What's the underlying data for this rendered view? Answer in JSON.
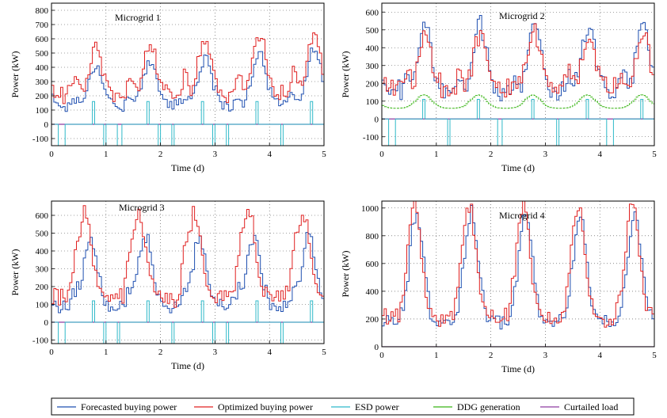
{
  "chart_data": {
    "type": "line",
    "legend": {
      "placement": "bottom",
      "entries": [
        {
          "label": "Forecasted buying power",
          "color": "#1f4fb0"
        },
        {
          "label": "Optimized buying power",
          "color": "#e02020"
        },
        {
          "label": "ESD power",
          "color": "#2fb9c9"
        },
        {
          "label": "DDG generation",
          "color": "#39b514"
        },
        {
          "label": "Curtailed load",
          "color": "#8e3aa0"
        }
      ]
    },
    "panels": [
      {
        "title": "Microgrid 1",
        "xlabel": "Time (d)",
        "ylabel": "Power (kW)",
        "xlim": [
          0,
          5
        ],
        "ylim": [
          -150,
          850
        ],
        "xticks": [
          0,
          1,
          2,
          3,
          4,
          5
        ],
        "yticks": [
          -100,
          0,
          100,
          200,
          300,
          400,
          500,
          600,
          700,
          800
        ],
        "grid": true,
        "series": {
          "forecast": {
            "base": 130,
            "amp": 300,
            "mid": 0.8,
            "second": 0.17,
            "noise": 30,
            "growth": 0.09
          },
          "optimized": {
            "base": 210,
            "amp": 320,
            "mid": 0.8,
            "second": 0.35,
            "noise": 35,
            "growth": 0.09
          },
          "esd": {
            "base": 0,
            "neg": -150,
            "pos": 160,
            "posAt": [
              0.75,
              1.75,
              2.75,
              3.75,
              4.75
            ],
            "negAt": [
              0.15,
              0.2,
              0.95,
              1.2,
              1.25,
              1.95,
              2.2,
              2.95,
              3.2,
              4.2,
              4.22
            ]
          },
          "curtailed": 0
        }
      },
      {
        "title": "Microgrid 2",
        "xlabel": "Time (d)",
        "ylabel": "Power (kW)",
        "xlim": [
          0,
          5
        ],
        "ylim": [
          -150,
          650
        ],
        "xticks": [
          0,
          1,
          2,
          3,
          4,
          5
        ],
        "yticks": [
          -100,
          0,
          100,
          200,
          300,
          400,
          500,
          600
        ],
        "grid": true,
        "series": {
          "forecast": {
            "base": 150,
            "amp": 380,
            "mid": 0.78,
            "second": 0.22,
            "noise": 45,
            "growth": 0.0
          },
          "optimized": {
            "base": 170,
            "amp": 300,
            "mid": 0.78,
            "second": 0.25,
            "noise": 40,
            "growth": 0.0
          },
          "esd": {
            "base": 0,
            "neg": -150,
            "pos": 110,
            "posAt": [
              0.75,
              1.75,
              2.75,
              3.75,
              4.75
            ],
            "negAt": [
              0.15,
              0.18,
              1.2,
              1.22,
              2.15,
              3.2,
              4.15,
              4.18,
              5.0
            ]
          },
          "ddg": {
            "base": 60,
            "amp": 75,
            "mid": 0.75
          },
          "curtailed": 0
        }
      },
      {
        "title": "Microgrid 3",
        "xlabel": "Time (d)",
        "ylabel": "Power (kW)",
        "xlim": [
          0,
          5
        ],
        "ylim": [
          -120,
          680
        ],
        "xticks": [
          0,
          1,
          2,
          3,
          4,
          5
        ],
        "yticks": [
          -100,
          0,
          100,
          200,
          300,
          400,
          500,
          600
        ],
        "grid": true,
        "series": {
          "forecast": {
            "base": 90,
            "amp": 390,
            "mid": 0.7,
            "second": 0.2,
            "noise": 35,
            "growth": 0.0
          },
          "optimized": {
            "base": 140,
            "amp": 470,
            "mid": 0.6,
            "second": 0.25,
            "noise": 40,
            "growth": 0.0
          },
          "esd": {
            "base": 0,
            "neg": -120,
            "pos": 120,
            "posAt": [
              0.75,
              1.75,
              2.75,
              3.75,
              4.75
            ],
            "negAt": [
              0.15,
              0.2,
              0.95,
              1.2,
              2.2,
              2.95,
              3.2,
              4.2,
              4.22,
              5.0
            ]
          },
          "curtailed": 0
        }
      },
      {
        "title": "Microgrid 4",
        "xlabel": "Time (d)",
        "ylabel": "Power (kW)",
        "xlim": [
          0,
          5
        ],
        "ylim": [
          0,
          1050
        ],
        "xticks": [
          0,
          1,
          2,
          3,
          4,
          5
        ],
        "yticks": [
          0,
          200,
          400,
          600,
          800,
          1000
        ],
        "grid": true,
        "series": {
          "forecast": {
            "base": 180,
            "amp": 780,
            "mid": 0.62,
            "second": 0.05,
            "noise": 40,
            "growth": 0.0
          },
          "optimized": {
            "base": 200,
            "amp": 820,
            "mid": 0.58,
            "second": 0.05,
            "noise": 40,
            "growth": 0.0
          },
          "curtailed": 0
        }
      }
    ]
  }
}
